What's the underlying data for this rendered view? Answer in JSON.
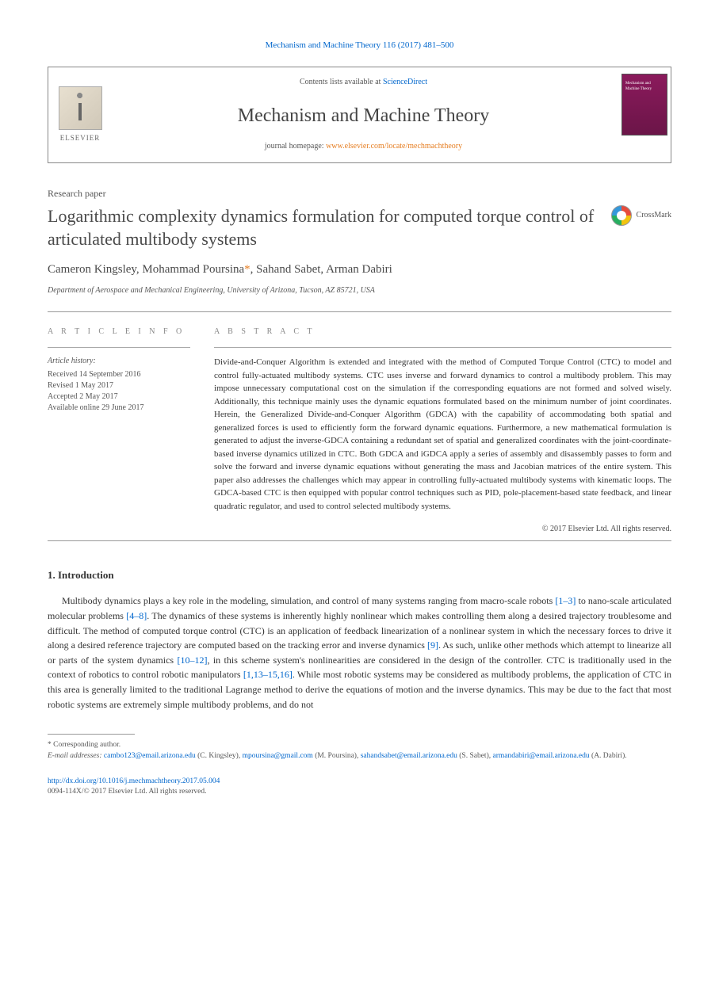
{
  "citation": "Mechanism and Machine Theory 116 (2017) 481–500",
  "header": {
    "contents_prefix": "Contents lists available at ",
    "contents_link": "ScienceDirect",
    "journal_name": "Mechanism and Machine Theory",
    "homepage_prefix": "journal homepage: ",
    "homepage_url": "www.elsevier.com/locate/mechmachtheory",
    "elsevier_label": "ELSEVIER",
    "cover_text": "Mechanism and Machine Theory"
  },
  "article_type": "Research paper",
  "title": "Logarithmic complexity dynamics formulation for computed torque control of articulated multibody systems",
  "crossmark_label": "CrossMark",
  "authors": "Cameron Kingsley, Mohammad Poursina",
  "authors_corr": "*",
  "authors_rest": ", Sahand Sabet, Arman Dabiri",
  "affiliation": "Department of Aerospace and Mechanical Engineering, University of Arizona, Tucson, AZ 85721, USA",
  "info": {
    "section_label": "A R T I C L E   I N F O",
    "history_label": "Article history:",
    "received": "Received 14 September 2016",
    "revised": "Revised 1 May 2017",
    "accepted": "Accepted 2 May 2017",
    "online": "Available online 29 June 2017"
  },
  "abstract": {
    "section_label": "A B S T R A C T",
    "text": "Divide-and-Conquer Algorithm is extended and integrated with the method of Computed Torque Control (CTC) to model and control fully-actuated multibody systems. CTC uses inverse and forward dynamics to control a multibody problem. This may impose unnecessary computational cost on the simulation if the corresponding equations are not formed and solved wisely. Additionally, this technique mainly uses the dynamic equations formulated based on the minimum number of joint coordinates. Herein, the Generalized Divide-and-Conquer Algorithm (GDCA) with the capability of accommodating both spatial and generalized forces is used to efficiently form the forward dynamic equations. Furthermore, a new mathematical formulation is generated to adjust the inverse-GDCA containing a redundant set of spatial and generalized coordinates with the joint-coordinate-based inverse dynamics utilized in CTC. Both GDCA and iGDCA apply a series of assembly and disassembly passes to form and solve the forward and inverse dynamic equations without generating the mass and Jacobian matrices of the entire system. This paper also addresses the challenges which may appear in controlling fully-actuated multibody systems with kinematic loops. The GDCA-based CTC is then equipped with popular control techniques such as PID, pole-placement-based state feedback, and linear quadratic regulator, and used to control selected multibody systems.",
    "copyright": "© 2017 Elsevier Ltd. All rights reserved."
  },
  "intro": {
    "heading": "1. Introduction",
    "p1a": "Multibody dynamics plays a key role in the modeling, simulation, and control of many systems ranging from macro-scale robots ",
    "c1": "[1–3]",
    "p1b": " to nano-scale articulated molecular problems ",
    "c2": "[4–8]",
    "p1c": ". The dynamics of these systems is inherently highly nonlinear which makes controlling them along a desired trajectory troublesome and difficult. The method of computed torque control (CTC) is an application of feedback linearization of a nonlinear system in which the necessary forces to drive it along a desired reference trajectory are computed based on the tracking error and inverse dynamics ",
    "c3": "[9]",
    "p1d": ". As such, unlike other methods which attempt to linearize all or parts of the system dynamics ",
    "c4": "[10–12]",
    "p1e": ", in this scheme system's nonlinearities are considered in the design of the controller. CTC is traditionally used in the context of robotics to control robotic manipulators ",
    "c5": "[1,13–15,16]",
    "p1f": ". While most robotic systems may be considered as multibody problems, the application of CTC in this area is generally limited to the traditional Lagrange method to derive the equations of motion and the inverse dynamics. This may be due to the fact that most robotic systems are extremely simple multibody problems, and do not"
  },
  "footnotes": {
    "corr_label": "* Corresponding author.",
    "email_label": "E-mail addresses:",
    "e1": "cambo123@email.arizona.edu",
    "n1": " (C. Kingsley), ",
    "e2": "mpoursina@gmail.com",
    "n2": " (M. Poursina), ",
    "e3": "sahandsabet@email.arizona.edu",
    "n3": " (S. Sabet), ",
    "e4": "armandabiri@email.arizona.edu",
    "n4": " (A. Dabiri)."
  },
  "doi": {
    "url": "http://dx.doi.org/10.1016/j.mechmachtheory.2017.05.004",
    "issn_copy": "0094-114X/© 2017 Elsevier Ltd. All rights reserved."
  }
}
